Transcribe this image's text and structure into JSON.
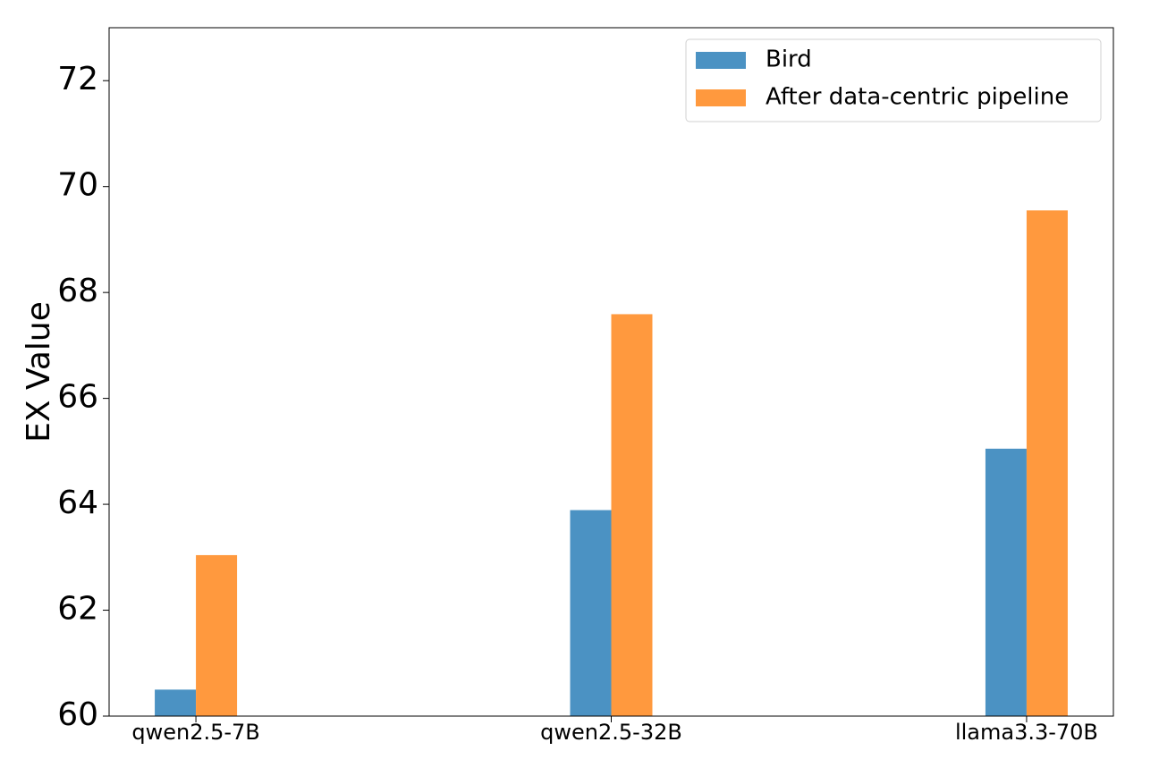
{
  "chart_data": {
    "type": "bar",
    "y_label": "EX Value",
    "categories": [
      "qwen2.5-7B",
      "qwen2.5-32B",
      "llama3.3-70B"
    ],
    "series": [
      {
        "name": "Bird",
        "color": "#4b92c3",
        "values": [
          60.5,
          63.89,
          65.05
        ]
      },
      {
        "name": "After data-centric pipeline",
        "color": "#ff993e",
        "values": [
          63.04,
          67.59,
          69.55
        ]
      }
    ],
    "ylim": [
      60,
      73
    ],
    "yticks": [
      60,
      62,
      64,
      66,
      68,
      70,
      72
    ],
    "legend": "upper right"
  }
}
